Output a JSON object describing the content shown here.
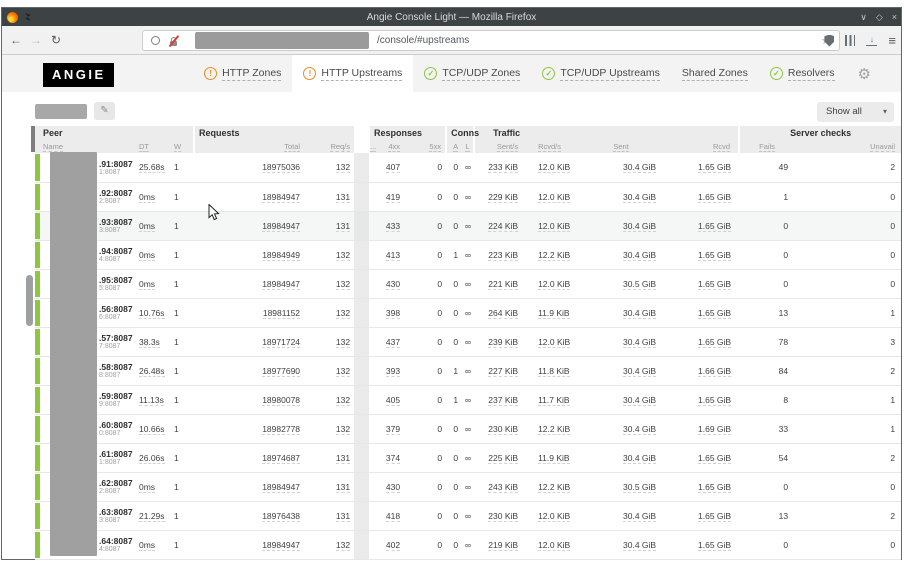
{
  "browser": {
    "title": "Angie Console Light — Mozilla Firefox",
    "url_path": "/console/#upstreams",
    "window_controls": {
      "minimize": "∨",
      "restore": "◇",
      "close": "×"
    },
    "icons": {
      "back": "←",
      "forward": "→",
      "reload": "↻",
      "star": "☆",
      "menu": "≡",
      "tray_arrow": "↓"
    }
  },
  "app": {
    "logo": "ANGIE",
    "tabs": [
      {
        "label": "HTTP Zones",
        "status": "warning",
        "active": false
      },
      {
        "label": "HTTP Upstreams",
        "status": "warning",
        "active": true
      },
      {
        "label": "TCP/UDP Zones",
        "status": "ok",
        "active": false
      },
      {
        "label": "TCP/UDP Upstreams",
        "status": "ok",
        "active": false
      },
      {
        "label": "Shared Zones",
        "status": "none",
        "active": false
      },
      {
        "label": "Resolvers",
        "status": "ok",
        "active": false
      }
    ],
    "icons": {
      "warning": "!",
      "check": "✓",
      "gear": "⚙",
      "pencil": "✎",
      "select_caret": "▾"
    },
    "show_all_label": "Show all"
  },
  "colors": {
    "status_ok_green": "#8dc63f",
    "warning_orange": "#ef8b1e",
    "titlebar": "#3d4245",
    "header_bg": "#ececec",
    "redaction_gray": "#a0a0a0"
  },
  "table": {
    "groups": [
      {
        "label": "Peer",
        "keys": [
          "name",
          "dt",
          "w"
        ]
      },
      {
        "label": "Requests",
        "keys": [
          "total",
          "reqs"
        ]
      },
      {
        "label": "Responses",
        "keys": [
          "dots",
          "r4xx",
          "r5xx"
        ]
      },
      {
        "label": "Conns",
        "keys": [
          "a",
          "l"
        ]
      },
      {
        "label": "Traffic",
        "keys": [
          "sent_s",
          "rcvd_s",
          "sent",
          "rcvd"
        ]
      },
      {
        "label": "Server checks",
        "keys": [
          "fails",
          "unavail"
        ]
      }
    ],
    "columns": {
      "name": "Name",
      "dt": "DT",
      "w": "W",
      "total": "Total",
      "reqs": "Req/s",
      "dots": "...",
      "r4xx": "4xx",
      "r5xx": "5xx",
      "a": "A",
      "l": "L",
      "sent_s": "Sent/s",
      "rcvd_s": "Rcvd/s",
      "sent": "Sent",
      "rcvd": "Rcvd",
      "fails": "Fails",
      "unavail": "Unavail"
    },
    "rows": [
      {
        "name": ".91:8087",
        "sub": "1:8087",
        "dt": "25.68s",
        "w": "1",
        "total": "18975036",
        "reqs": "132",
        "r4xx": "407",
        "r5xx": "0",
        "a": "0",
        "l": "∞",
        "sent_s": "233 KiB",
        "rcvd_s": "12.0 KiB",
        "sent": "30.4 GiB",
        "rcvd": "1.65 GiB",
        "fails": "49",
        "unavail": "2"
      },
      {
        "name": ".92:8087",
        "sub": "2:8087",
        "dt": "0ms",
        "w": "1",
        "total": "18984947",
        "reqs": "131",
        "r4xx": "419",
        "r5xx": "0",
        "a": "0",
        "l": "∞",
        "sent_s": "229 KiB",
        "rcvd_s": "12.0 KiB",
        "sent": "30.4 GiB",
        "rcvd": "1.65 GiB",
        "fails": "1",
        "unavail": "0"
      },
      {
        "name": ".93:8087",
        "sub": "3:8087",
        "dt": "0ms",
        "w": "1",
        "total": "18984947",
        "reqs": "131",
        "r4xx": "433",
        "r5xx": "0",
        "a": "0",
        "l": "∞",
        "sent_s": "224 KiB",
        "rcvd_s": "12.0 KiB",
        "sent": "30.4 GiB",
        "rcvd": "1.65 GiB",
        "fails": "0",
        "unavail": "0",
        "hover": true
      },
      {
        "name": ".94:8087",
        "sub": "4:8087",
        "dt": "0ms",
        "w": "1",
        "total": "18984949",
        "reqs": "132",
        "r4xx": "413",
        "r5xx": "0",
        "a": "1",
        "l": "∞",
        "sent_s": "223 KiB",
        "rcvd_s": "12.2 KiB",
        "sent": "30.4 GiB",
        "rcvd": "1.65 GiB",
        "fails": "0",
        "unavail": "0"
      },
      {
        "name": ".95:8087",
        "sub": "5:8087",
        "dt": "0ms",
        "w": "1",
        "total": "18984947",
        "reqs": "132",
        "r4xx": "430",
        "r5xx": "0",
        "a": "0",
        "l": "∞",
        "sent_s": "221 KiB",
        "rcvd_s": "12.0 KiB",
        "sent": "30.5 GiB",
        "rcvd": "1.65 GiB",
        "fails": "0",
        "unavail": "0"
      },
      {
        "name": ".56:8087",
        "sub": "6:8087",
        "dt": "10.76s",
        "w": "1",
        "total": "18981152",
        "reqs": "132",
        "r4xx": "398",
        "r5xx": "0",
        "a": "0",
        "l": "∞",
        "sent_s": "264 KiB",
        "rcvd_s": "11.9 KiB",
        "sent": "30.4 GiB",
        "rcvd": "1.65 GiB",
        "fails": "13",
        "unavail": "1"
      },
      {
        "name": ".57:8087",
        "sub": "7:8087",
        "dt": "38.3s",
        "w": "1",
        "total": "18971724",
        "reqs": "132",
        "r4xx": "437",
        "r5xx": "0",
        "a": "0",
        "l": "∞",
        "sent_s": "239 KiB",
        "rcvd_s": "12.0 KiB",
        "sent": "30.4 GiB",
        "rcvd": "1.65 GiB",
        "fails": "78",
        "unavail": "3"
      },
      {
        "name": ".58:8087",
        "sub": "8:8087",
        "dt": "26.48s",
        "w": "1",
        "total": "18977690",
        "reqs": "132",
        "r4xx": "393",
        "r5xx": "0",
        "a": "1",
        "l": "∞",
        "sent_s": "227 KiB",
        "rcvd_s": "11.8 KiB",
        "sent": "30.4 GiB",
        "rcvd": "1.66 GiB",
        "fails": "84",
        "unavail": "2"
      },
      {
        "name": ".59:8087",
        "sub": "9:8087",
        "dt": "11.13s",
        "w": "1",
        "total": "18980078",
        "reqs": "132",
        "r4xx": "405",
        "r5xx": "0",
        "a": "1",
        "l": "∞",
        "sent_s": "237 KiB",
        "rcvd_s": "11.7 KiB",
        "sent": "30.4 GiB",
        "rcvd": "1.65 GiB",
        "fails": "8",
        "unavail": "1"
      },
      {
        "name": ".60:8087",
        "sub": "0:8087",
        "dt": "10.66s",
        "w": "1",
        "total": "18982778",
        "reqs": "132",
        "r4xx": "379",
        "r5xx": "0",
        "a": "0",
        "l": "∞",
        "sent_s": "230 KiB",
        "rcvd_s": "12.2 KiB",
        "sent": "30.4 GiB",
        "rcvd": "1.69 GiB",
        "fails": "33",
        "unavail": "1"
      },
      {
        "name": ".61:8087",
        "sub": "1:8087",
        "dt": "26.06s",
        "w": "1",
        "total": "18974687",
        "reqs": "131",
        "r4xx": "374",
        "r5xx": "0",
        "a": "0",
        "l": "∞",
        "sent_s": "225 KiB",
        "rcvd_s": "11.9 KiB",
        "sent": "30.4 GiB",
        "rcvd": "1.65 GiB",
        "fails": "54",
        "unavail": "2"
      },
      {
        "name": ".62:8087",
        "sub": "2:8087",
        "dt": "0ms",
        "w": "1",
        "total": "18984947",
        "reqs": "131",
        "r4xx": "430",
        "r5xx": "0",
        "a": "0",
        "l": "∞",
        "sent_s": "243 KiB",
        "rcvd_s": "12.2 KiB",
        "sent": "30.5 GiB",
        "rcvd": "1.65 GiB",
        "fails": "0",
        "unavail": "0"
      },
      {
        "name": ".63:8087",
        "sub": "3:8087",
        "dt": "21.29s",
        "w": "1",
        "total": "18976438",
        "reqs": "131",
        "r4xx": "418",
        "r5xx": "0",
        "a": "0",
        "l": "∞",
        "sent_s": "230 KiB",
        "rcvd_s": "12.0 KiB",
        "sent": "30.4 GiB",
        "rcvd": "1.65 GiB",
        "fails": "13",
        "unavail": "2"
      },
      {
        "name": ".64:8087",
        "sub": "4:8087",
        "dt": "0ms",
        "w": "1",
        "total": "18984947",
        "reqs": "132",
        "r4xx": "402",
        "r5xx": "0",
        "a": "0",
        "l": "∞",
        "sent_s": "219 KiB",
        "rcvd_s": "12.0 KiB",
        "sent": "30.4 GiB",
        "rcvd": "1.65 GiB",
        "fails": "0",
        "unavail": "0"
      }
    ]
  }
}
